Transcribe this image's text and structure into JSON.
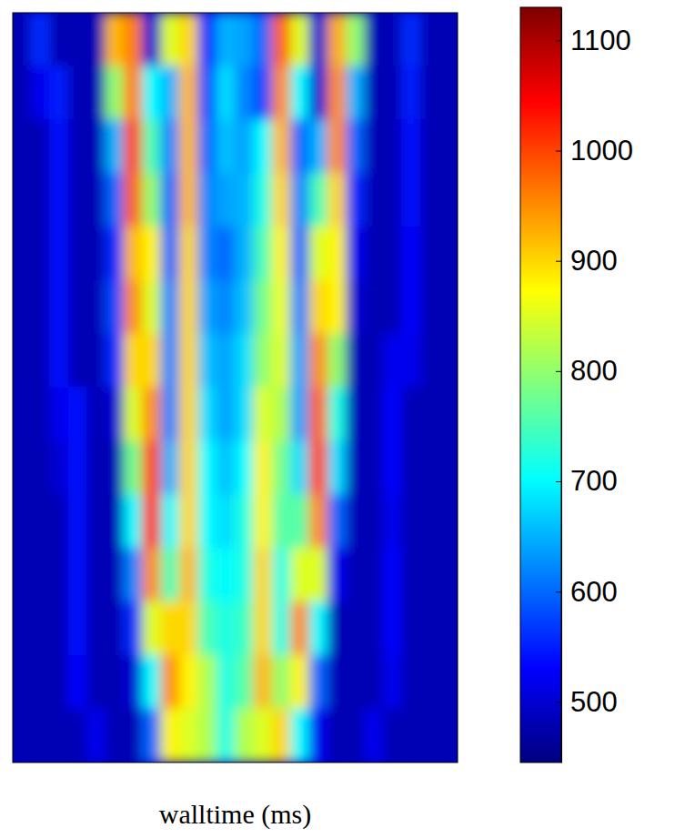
{
  "chart_data": {
    "type": "heatmap",
    "xlabel": "walltime (ms)",
    "color": "jet",
    "colorbar_range": [
      445,
      1130
    ],
    "colorbar_ticks": [
      500,
      600,
      700,
      800,
      900,
      1000,
      1100
    ],
    "cells": [
      [
        480,
        560,
        480,
        480,
        480,
        920,
        960,
        500,
        850,
        900,
        560,
        650,
        640,
        600,
        980,
        850,
        500,
        930,
        800,
        480,
        480,
        560,
        480,
        480
      ],
      [
        480,
        520,
        550,
        480,
        480,
        800,
        960,
        700,
        650,
        920,
        580,
        680,
        620,
        580,
        950,
        700,
        500,
        950,
        650,
        480,
        480,
        550,
        480,
        480
      ],
      [
        480,
        480,
        540,
        480,
        480,
        650,
        1000,
        750,
        620,
        920,
        600,
        660,
        640,
        700,
        920,
        600,
        650,
        950,
        600,
        480,
        480,
        540,
        480,
        480
      ],
      [
        480,
        480,
        540,
        480,
        480,
        600,
        980,
        800,
        600,
        920,
        620,
        640,
        650,
        720,
        900,
        620,
        750,
        900,
        560,
        480,
        480,
        540,
        480,
        480
      ],
      [
        480,
        480,
        540,
        480,
        480,
        560,
        920,
        880,
        600,
        900,
        620,
        600,
        650,
        750,
        880,
        600,
        850,
        880,
        520,
        480,
        480,
        530,
        480,
        480
      ],
      [
        480,
        480,
        540,
        480,
        480,
        580,
        950,
        850,
        620,
        900,
        640,
        620,
        660,
        780,
        860,
        620,
        900,
        880,
        500,
        480,
        480,
        530,
        480,
        480
      ],
      [
        480,
        480,
        540,
        480,
        480,
        560,
        900,
        900,
        620,
        900,
        660,
        640,
        680,
        800,
        850,
        640,
        950,
        800,
        480,
        480,
        520,
        520,
        480,
        480
      ],
      [
        480,
        480,
        520,
        540,
        480,
        500,
        850,
        950,
        620,
        900,
        680,
        640,
        680,
        850,
        820,
        640,
        980,
        720,
        480,
        480,
        530,
        480,
        480,
        480
      ],
      [
        480,
        480,
        500,
        540,
        480,
        480,
        780,
        1000,
        650,
        900,
        700,
        660,
        700,
        880,
        780,
        680,
        1000,
        680,
        480,
        480,
        530,
        480,
        480,
        480
      ],
      [
        480,
        480,
        480,
        540,
        480,
        480,
        700,
        1020,
        700,
        900,
        700,
        680,
        720,
        880,
        760,
        760,
        950,
        600,
        480,
        480,
        520,
        480,
        480,
        480
      ],
      [
        480,
        480,
        480,
        540,
        480,
        480,
        620,
        950,
        750,
        920,
        720,
        700,
        720,
        900,
        720,
        850,
        850,
        520,
        480,
        480,
        530,
        480,
        480,
        480
      ],
      [
        480,
        480,
        480,
        540,
        480,
        480,
        560,
        850,
        900,
        900,
        750,
        720,
        740,
        900,
        720,
        950,
        700,
        480,
        480,
        480,
        530,
        480,
        480,
        480
      ],
      [
        480,
        480,
        480,
        530,
        480,
        480,
        500,
        700,
        950,
        880,
        820,
        720,
        760,
        920,
        800,
        880,
        600,
        480,
        480,
        480,
        520,
        480,
        480,
        480
      ],
      [
        480,
        480,
        480,
        480,
        520,
        480,
        480,
        600,
        880,
        850,
        820,
        720,
        820,
        850,
        900,
        700,
        520,
        480,
        480,
        520,
        480,
        480,
        480,
        480
      ]
    ]
  }
}
